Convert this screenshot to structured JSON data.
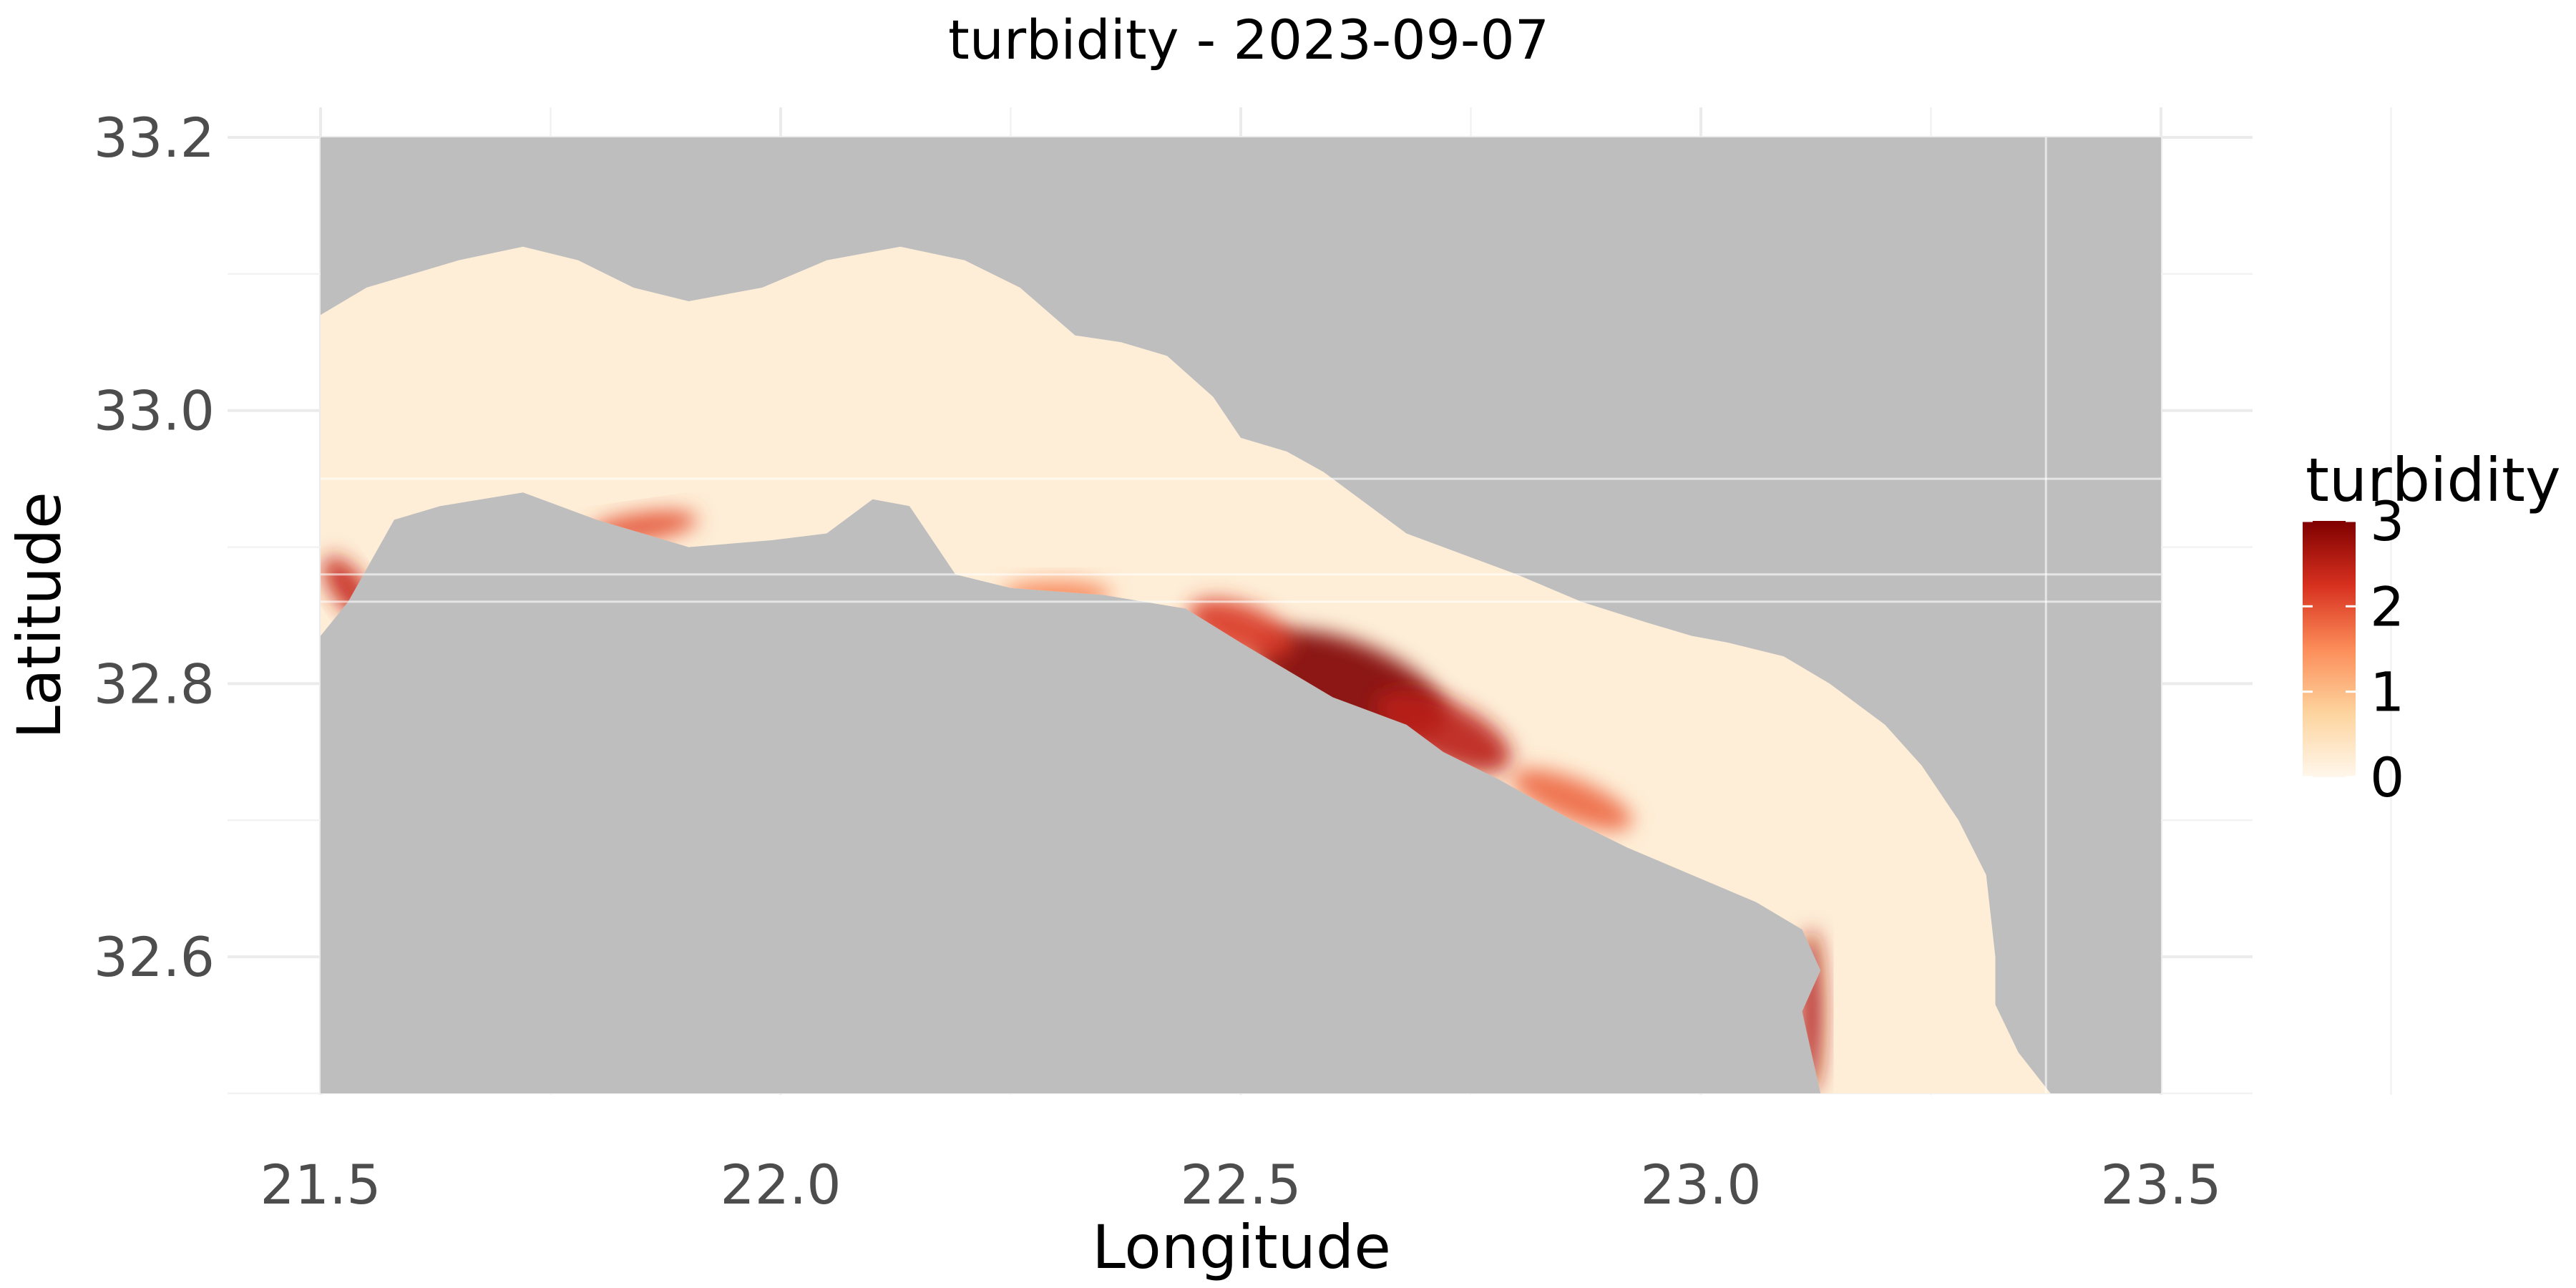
{
  "chart_data": {
    "type": "heatmap",
    "title": "turbidity - 2023-09-07",
    "xlabel": "Longitude",
    "ylabel": "Latitude",
    "xlim": [
      21.5,
      23.5
    ],
    "ylim": [
      32.5,
      33.2
    ],
    "x_ticks": [
      21.5,
      22.0,
      22.5,
      23.0,
      23.5
    ],
    "x_tick_labels": [
      "21.5",
      "22.0",
      "22.5",
      "23.0",
      "23.5"
    ],
    "y_ticks": [
      32.6,
      32.8,
      33.0,
      33.2
    ],
    "y_tick_labels": [
      "32.6",
      "32.8",
      "33.0",
      "33.2"
    ],
    "grid": true,
    "background_color": "#bebebe",
    "legend": {
      "title": "turbidity",
      "placement": "right",
      "range": [
        0,
        3
      ],
      "ticks": [
        0,
        1,
        2,
        3
      ],
      "tick_labels": [
        "0",
        "1",
        "2",
        "3"
      ],
      "colors": [
        "#fff7ec",
        "#fdd49e",
        "#fc8d59",
        "#d7301f",
        "#7f0000"
      ]
    },
    "coastal_water_polygon": [
      [
        21.5,
        33.07
      ],
      [
        21.55,
        33.09
      ],
      [
        21.6,
        33.1
      ],
      [
        21.65,
        33.11
      ],
      [
        21.72,
        33.12
      ],
      [
        21.78,
        33.11
      ],
      [
        21.84,
        33.09
      ],
      [
        21.9,
        33.08
      ],
      [
        21.98,
        33.09
      ],
      [
        22.05,
        33.11
      ],
      [
        22.13,
        33.12
      ],
      [
        22.2,
        33.11
      ],
      [
        22.26,
        33.09
      ],
      [
        22.32,
        33.055
      ],
      [
        22.37,
        33.05
      ],
      [
        22.42,
        33.04
      ],
      [
        22.47,
        33.01
      ],
      [
        22.5,
        32.98
      ],
      [
        22.55,
        32.97
      ],
      [
        22.59,
        32.955
      ],
      [
        22.64,
        32.93
      ],
      [
        22.68,
        32.91
      ],
      [
        22.74,
        32.895
      ],
      [
        22.8,
        32.88
      ],
      [
        22.87,
        32.86
      ],
      [
        22.94,
        32.845
      ],
      [
        22.99,
        32.835
      ],
      [
        23.03,
        32.83
      ],
      [
        23.09,
        32.82
      ],
      [
        23.14,
        32.8
      ],
      [
        23.2,
        32.77
      ],
      [
        23.24,
        32.74
      ],
      [
        23.28,
        32.7
      ],
      [
        23.31,
        32.66
      ],
      [
        23.32,
        32.6
      ],
      [
        23.32,
        32.565
      ],
      [
        23.345,
        32.53
      ],
      [
        23.38,
        32.5
      ],
      [
        23.13,
        32.5
      ],
      [
        23.12,
        32.53
      ],
      [
        23.11,
        32.56
      ],
      [
        23.13,
        32.59
      ],
      [
        23.11,
        32.62
      ],
      [
        23.06,
        32.64
      ],
      [
        22.99,
        32.66
      ],
      [
        22.92,
        32.68
      ],
      [
        22.86,
        32.7
      ],
      [
        22.78,
        32.73
      ],
      [
        22.72,
        32.75
      ],
      [
        22.68,
        32.77
      ],
      [
        22.6,
        32.79
      ],
      [
        22.55,
        32.81
      ],
      [
        22.5,
        32.83
      ],
      [
        22.44,
        32.855
      ],
      [
        22.35,
        32.865
      ],
      [
        22.25,
        32.87
      ],
      [
        22.19,
        32.88
      ],
      [
        22.17,
        32.9
      ],
      [
        22.14,
        32.93
      ],
      [
        22.1,
        32.935
      ],
      [
        22.05,
        32.91
      ],
      [
        21.99,
        32.905
      ],
      [
        21.9,
        32.9
      ],
      [
        21.8,
        32.92
      ],
      [
        21.72,
        32.94
      ],
      [
        21.63,
        32.93
      ],
      [
        21.58,
        32.92
      ],
      [
        21.53,
        32.86
      ],
      [
        21.5,
        32.835
      ]
    ],
    "high_turbidity_zones": [
      {
        "lon": 22.62,
        "lat": 32.8,
        "value": 3.0,
        "rx": 0.11,
        "ry": 0.03,
        "angle": 22
      },
      {
        "lon": 22.72,
        "lat": 32.765,
        "value": 2.5,
        "rx": 0.08,
        "ry": 0.022,
        "angle": 25
      },
      {
        "lon": 22.5,
        "lat": 32.84,
        "value": 2.2,
        "rx": 0.06,
        "ry": 0.018,
        "angle": 20
      },
      {
        "lon": 22.86,
        "lat": 32.715,
        "value": 1.8,
        "rx": 0.07,
        "ry": 0.015,
        "angle": 22
      },
      {
        "lon": 23.12,
        "lat": 32.56,
        "value": 2.6,
        "rx": 0.012,
        "ry": 0.06,
        "angle": 0
      },
      {
        "lon": 21.53,
        "lat": 32.87,
        "value": 2.4,
        "rx": 0.04,
        "ry": 0.012,
        "angle": 55
      },
      {
        "lon": 21.85,
        "lat": 32.915,
        "value": 2.0,
        "rx": 0.06,
        "ry": 0.01,
        "angle": -8
      },
      {
        "lon": 22.3,
        "lat": 32.865,
        "value": 1.6,
        "rx": 0.06,
        "ry": 0.01,
        "angle": 0
      }
    ]
  }
}
